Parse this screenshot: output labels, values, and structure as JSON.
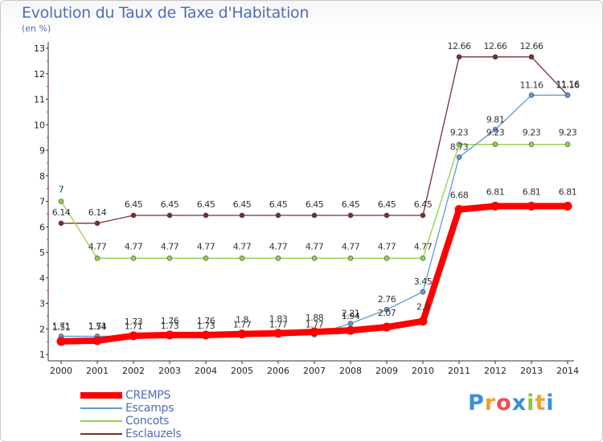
{
  "header": {
    "title": "Evolution du Taux de Taxe d'Habitation",
    "unit": "(en %)"
  },
  "brand": {
    "text": "Proxiti",
    "colors": [
      "#3a8fd9",
      "#f0a030",
      "#e85050",
      "#3a8fd9",
      "#8fc43c",
      "#f0a030",
      "#3a8fd9"
    ]
  },
  "chart_data": {
    "type": "line",
    "title": "Evolution du Taux de Taxe d'Habitation",
    "ylabel": "(en %)",
    "xlabel": "",
    "x": [
      "2000",
      "2001",
      "2002",
      "2003",
      "2004",
      "2005",
      "2006",
      "2007",
      "2008",
      "2009",
      "2010",
      "2011",
      "2012",
      "2013",
      "2014"
    ],
    "ylim": [
      1,
      13
    ],
    "yticks": [
      1,
      2,
      3,
      4,
      5,
      6,
      7,
      8,
      9,
      10,
      11,
      12,
      13
    ],
    "grid": false,
    "legend_position": "bottom-left",
    "series": [
      {
        "name": "CREMPS",
        "color": "#ff0000",
        "values": [
          1.51,
          1.54,
          1.73,
          1.76,
          1.76,
          1.8,
          1.83,
          1.88,
          1.94,
          2.07,
          2.3,
          6.68,
          6.81,
          6.81,
          6.81
        ],
        "labels": [
          "1.51",
          "1.54",
          "1.73",
          "1.76",
          "1.76",
          "1.8",
          "1.83",
          "1.88",
          "1.94",
          "2.07",
          "2.3",
          "6.68",
          "6.81",
          "6.81",
          "6.81"
        ]
      },
      {
        "name": "Escamps",
        "color": "#5b9bd5",
        "values": [
          1.71,
          1.71,
          1.71,
          1.73,
          1.73,
          1.77,
          1.77,
          1.77,
          2.21,
          2.76,
          3.45,
          8.73,
          9.81,
          11.16,
          11.16
        ],
        "labels": [
          "1.71",
          "1.71",
          "1.71",
          "1.73",
          "1.73",
          "1.77",
          "1.77",
          "1.77",
          "2.21",
          "2.76",
          "3.45",
          "8.73",
          "9.81",
          "11.16",
          "11.16"
        ]
      },
      {
        "name": "Concots",
        "color": "#8ed14f",
        "values": [
          7,
          4.77,
          4.77,
          4.77,
          4.77,
          4.77,
          4.77,
          4.77,
          4.77,
          4.77,
          4.77,
          9.23,
          9.23,
          9.23,
          9.23
        ],
        "labels": [
          "7",
          "4.77",
          "4.77",
          "4.77",
          "4.77",
          "4.77",
          "4.77",
          "4.77",
          "4.77",
          "4.77",
          "4.77",
          "9.23",
          "9.23",
          "9.23",
          "9.23"
        ]
      },
      {
        "name": "Esclauzels",
        "color": "#7a2f2f",
        "values": [
          6.14,
          6.14,
          6.45,
          6.45,
          6.45,
          6.45,
          6.45,
          6.45,
          6.45,
          6.45,
          6.45,
          12.66,
          12.66,
          12.66,
          11.16
        ],
        "labels": [
          "6.14",
          "6.14",
          "6.45",
          "6.45",
          "6.45",
          "6.45",
          "6.45",
          "6.45",
          "6.45",
          "6.45",
          "6.45",
          "12.66",
          "12.66",
          "12.66",
          "11.16"
        ]
      }
    ]
  }
}
